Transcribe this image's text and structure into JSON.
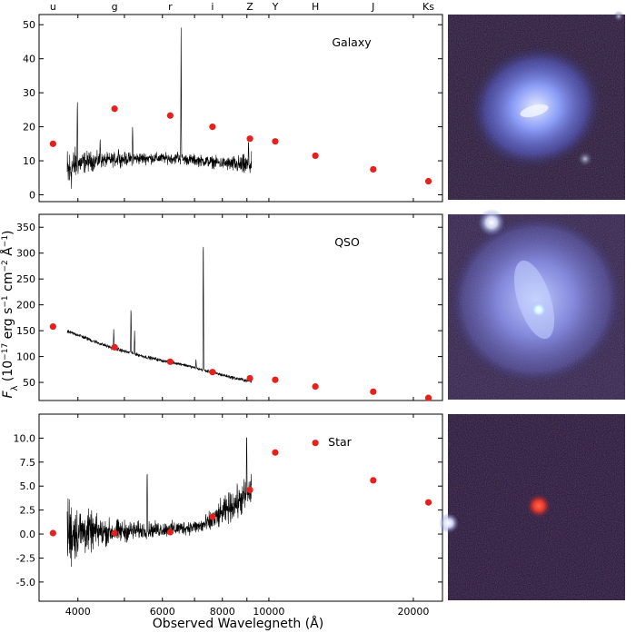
{
  "figure": {
    "band_labels": [
      "u",
      "g",
      "r",
      "i",
      "Z",
      "Y",
      "H",
      "J",
      "Ks"
    ],
    "band_wavelengths": [
      3550,
      4770,
      6230,
      7630,
      9130,
      10310,
      16500,
      12500,
      21500
    ],
    "xlabel": "Observed Wavelegneth (Å)",
    "ylabel": "F_λ (10^-17 erg s^-1 cm^-2 Å^-1)",
    "colors": {
      "photometry": "#e8201c",
      "spectrum": "#000000",
      "frame": "#000000"
    },
    "images": [
      "galaxy-image",
      "qso-image",
      "star-image"
    ]
  },
  "chart_data": [
    {
      "type": "line",
      "label": "Galaxy",
      "x_scale": "log",
      "xlim": [
        3320,
        23000
      ],
      "ylim": [
        -2,
        53
      ],
      "yticks": [
        0,
        10,
        20,
        30,
        40,
        50
      ],
      "xticks": [],
      "spectrum": {
        "x_range": [
          3800,
          9200
        ],
        "continuum": [
          [
            3800,
            6
          ],
          [
            3950,
            9
          ],
          [
            4200,
            9.8
          ],
          [
            4800,
            10.4
          ],
          [
            5600,
            10.8
          ],
          [
            6300,
            10.7
          ],
          [
            7000,
            10.2
          ],
          [
            7800,
            9.5
          ],
          [
            8600,
            8.8
          ],
          [
            9200,
            8.5
          ]
        ],
        "noise": [
          [
            3800,
            7
          ],
          [
            4000,
            3
          ],
          [
            4500,
            1.8
          ],
          [
            6000,
            1.3
          ],
          [
            8000,
            1.5
          ],
          [
            9200,
            3
          ]
        ],
        "lines": [
          [
            3990,
            30
          ],
          [
            4450,
            17
          ],
          [
            4860,
            14
          ],
          [
            5200,
            21
          ],
          [
            6562,
            50
          ],
          [
            6450,
            13
          ],
          [
            9070,
            17
          ]
        ]
      },
      "photometry": {
        "x": [
          3550,
          4770,
          6230,
          7630,
          9130,
          10310,
          12500,
          16500,
          21500
        ],
        "y": [
          15,
          25.3,
          23.3,
          20,
          16.5,
          15.7,
          11.5,
          7.5,
          4
        ]
      }
    },
    {
      "type": "line",
      "label": "QSO",
      "x_scale": "log",
      "xlim": [
        3320,
        23000
      ],
      "ylim": [
        15,
        375
      ],
      "yticks": [
        50,
        100,
        150,
        200,
        250,
        300,
        350
      ],
      "xticks": [],
      "spectrum": {
        "x_range": [
          3800,
          9200
        ],
        "continuum": [
          [
            3800,
            148
          ],
          [
            4000,
            142
          ],
          [
            4300,
            130
          ],
          [
            4700,
            117
          ],
          [
            5100,
            108
          ],
          [
            5500,
            100
          ],
          [
            6000,
            92
          ],
          [
            6600,
            85
          ],
          [
            7200,
            75
          ],
          [
            7800,
            67
          ],
          [
            8500,
            58
          ],
          [
            9200,
            52
          ]
        ],
        "noise": [
          [
            3800,
            3
          ],
          [
            5000,
            3
          ],
          [
            7000,
            2.5
          ],
          [
            9200,
            3
          ]
        ],
        "lines": [
          [
            4750,
            155
          ],
          [
            5160,
            205
          ],
          [
            5250,
            150
          ],
          [
            7300,
            365
          ],
          [
            7050,
            95
          ]
        ]
      },
      "photometry": {
        "x": [
          3550,
          4770,
          6230,
          7630,
          9130,
          10310,
          12500,
          16500,
          21500
        ],
        "y": [
          158,
          118,
          90,
          70,
          58,
          55,
          42,
          32,
          20
        ]
      }
    },
    {
      "type": "line",
      "label": "Star",
      "x_scale": "log",
      "xlim": [
        3320,
        23000
      ],
      "ylim": [
        -7,
        12.5
      ],
      "yticks": [
        -5.0,
        -2.5,
        0.0,
        2.5,
        5.0,
        7.5,
        10.0
      ],
      "xticks": [
        4000,
        6000,
        8000,
        10000,
        20000
      ],
      "xtick_labels": [
        "4000",
        "6000",
        "8000",
        "10000",
        "20000"
      ],
      "spectrum": {
        "x_range": [
          3800,
          9200
        ],
        "continuum": [
          [
            3800,
            0.2
          ],
          [
            4500,
            0.2
          ],
          [
            5500,
            0.4
          ],
          [
            6500,
            0.6
          ],
          [
            7200,
            0.8
          ],
          [
            7600,
            1.3
          ],
          [
            8000,
            2.2
          ],
          [
            8300,
            2.8
          ],
          [
            8600,
            3.3
          ],
          [
            9000,
            4.0
          ],
          [
            9200,
            4.5
          ]
        ],
        "noise": [
          [
            3800,
            3.5
          ],
          [
            4000,
            2.2
          ],
          [
            4500,
            1.2
          ],
          [
            5500,
            0.7
          ],
          [
            7000,
            0.6
          ],
          [
            8000,
            1.2
          ],
          [
            9200,
            1.6
          ]
        ],
        "lines": [
          [
            5577,
            7.6
          ],
          [
            8990,
            11.5
          ],
          [
            7650,
            2.3
          ]
        ]
      },
      "photometry": {
        "x": [
          3550,
          4770,
          6230,
          7630,
          9130,
          10310,
          12500,
          16500,
          21500
        ],
        "y": [
          0.1,
          0.1,
          0.2,
          1.8,
          4.6,
          8.5,
          9.5,
          5.6,
          3.3
        ]
      }
    }
  ]
}
